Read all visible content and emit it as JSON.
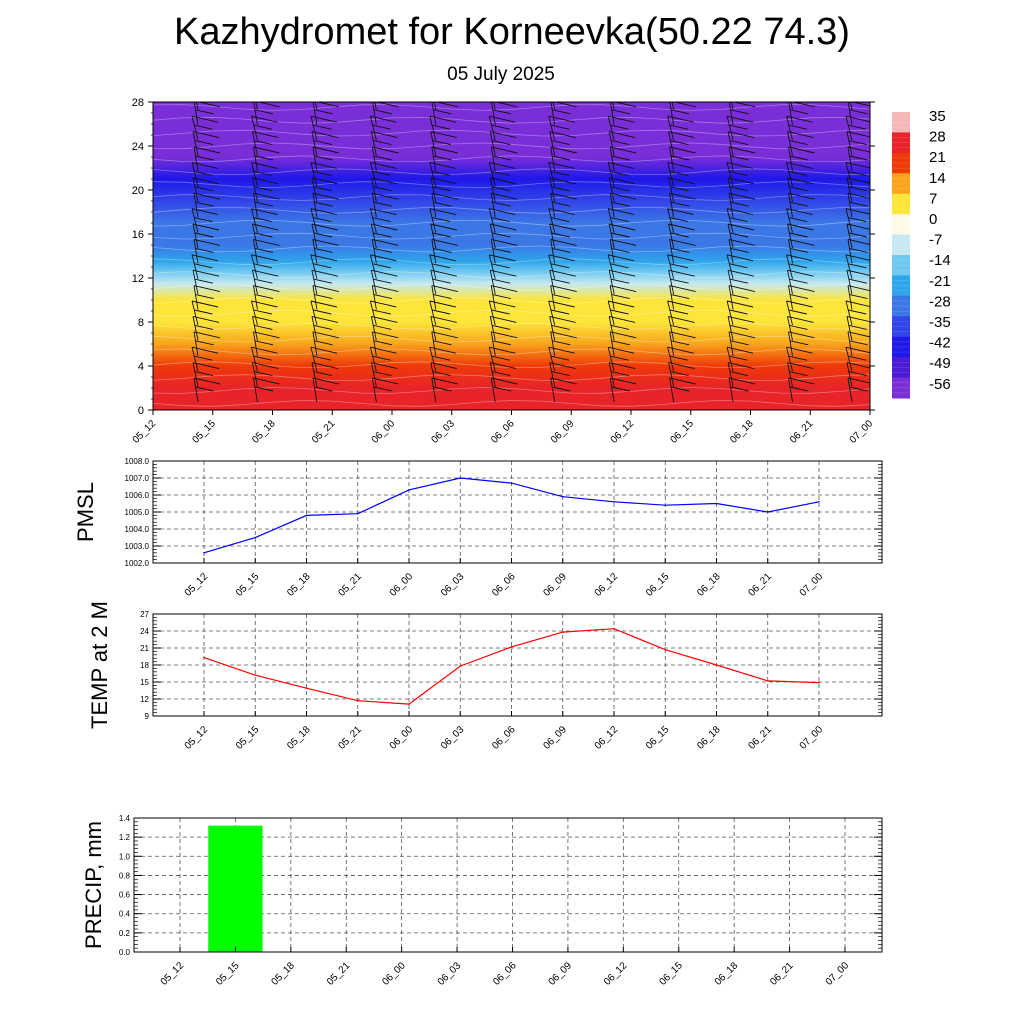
{
  "header": {
    "title": "Kazhydromet for Korneevka(50.22 74.3)",
    "subtitle": "05 July 2025"
  },
  "chart_data": [
    {
      "type": "heatmap",
      "panel": "upper-air cross-section",
      "x_ticks": [
        "05_12",
        "05_15",
        "05_18",
        "05_21",
        "06_00",
        "06_03",
        "06_06",
        "06_09",
        "06_12",
        "06_15",
        "06_18",
        "06_21",
        "07_00"
      ],
      "y_ticks": [
        "0",
        "4",
        "8",
        "12",
        "16",
        "20",
        "24",
        "28"
      ],
      "ylim": [
        0,
        28
      ],
      "colorbar": {
        "labels": [
          "35",
          "28",
          "21",
          "14",
          "7",
          "0",
          "-7",
          "-14",
          "-21",
          "-28",
          "-35",
          "-42",
          "-49",
          "-56"
        ],
        "colors": [
          "#f5b8b8",
          "#e8242a",
          "#ee3a08",
          "#f9a41c",
          "#fde53a",
          "#fffbe8",
          "#c5e8f2",
          "#6fc8f0",
          "#2ea6ec",
          "#3b78e6",
          "#3245e8",
          "#1e18e8",
          "#4b1cd6",
          "#7a2ed8"
        ]
      },
      "field_by_height": [
        {
          "h": 0,
          "t": 30
        },
        {
          "h": 2,
          "t": 26
        },
        {
          "h": 4,
          "t": 21
        },
        {
          "h": 6,
          "t": 15
        },
        {
          "h": 8,
          "t": 9
        },
        {
          "h": 10,
          "t": 4
        },
        {
          "h": 11.5,
          "t": -4
        },
        {
          "h": 12.6,
          "t": -12
        },
        {
          "h": 13.5,
          "t": -20
        },
        {
          "h": 15,
          "t": -26
        },
        {
          "h": 17,
          "t": -31
        },
        {
          "h": 19,
          "t": -36
        },
        {
          "h": 21,
          "t": -44
        },
        {
          "h": 23,
          "t": -53
        },
        {
          "h": 25,
          "t": -55
        },
        {
          "h": 28,
          "t": -58
        }
      ],
      "wind_barbs": "present at all levels and times"
    },
    {
      "type": "line",
      "ylabel": "PMSL",
      "categories": [
        "05_12",
        "05_15",
        "05_18",
        "05_21",
        "06_00",
        "06_03",
        "06_06",
        "06_09",
        "06_12",
        "06_15",
        "06_18",
        "06_21",
        "07_00"
      ],
      "series": [
        {
          "values": [
            1002.6,
            1003.5,
            1004.8,
            1004.9,
            1006.3,
            1007.0,
            1006.7,
            1005.9,
            1005.6,
            1005.4,
            1005.5,
            1005.0,
            1005.6
          ],
          "color": "#0000ff"
        }
      ],
      "yticks": [
        "1002.0",
        "1003.0",
        "1004.0",
        "1005.0",
        "1006.0",
        "1007.0",
        "1008.0"
      ],
      "ylim": [
        1002,
        1008
      ],
      "grid": true
    },
    {
      "type": "line",
      "ylabel": "TEMP at 2 M",
      "categories": [
        "05_12",
        "05_15",
        "05_18",
        "05_21",
        "06_00",
        "06_03",
        "06_06",
        "06_09",
        "06_12",
        "06_15",
        "06_18",
        "06_21",
        "07_00"
      ],
      "series": [
        {
          "values": [
            19.3,
            16.2,
            13.9,
            11.7,
            11.1,
            17.8,
            21.2,
            23.8,
            24.4,
            20.7,
            18.0,
            15.2,
            14.9
          ],
          "color": "#ff0000"
        }
      ],
      "yticks": [
        "9",
        "12",
        "15",
        "18",
        "21",
        "24",
        "27"
      ],
      "ylim": [
        9,
        27
      ],
      "grid": true
    },
    {
      "type": "bar",
      "ylabel": "PRECIP, mm",
      "categories": [
        "05_12",
        "05_15",
        "05_18",
        "05_21",
        "06_00",
        "06_03",
        "06_06",
        "06_09",
        "06_12",
        "06_15",
        "06_18",
        "06_21",
        "07_00"
      ],
      "series": [
        {
          "values": [
            0,
            1.32,
            0,
            0,
            0,
            0,
            0,
            0,
            0,
            0,
            0,
            0,
            0
          ],
          "color": "#00ff00"
        }
      ],
      "yticks": [
        "0.0",
        "0.2",
        "0.4",
        "0.6",
        "0.8",
        "1.0",
        "1.2",
        "1.4"
      ],
      "ylim": [
        0,
        1.4
      ],
      "grid": true
    }
  ]
}
